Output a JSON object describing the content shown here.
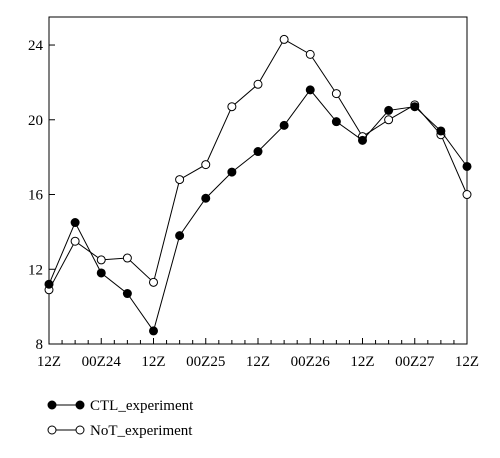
{
  "chart_data": {
    "type": "line",
    "title": "",
    "xlabel": "",
    "ylabel": "",
    "x_tick_labels": [
      "12Z",
      "00Z24",
      "12Z",
      "00Z25",
      "12Z",
      "00Z26",
      "12Z",
      "00Z27",
      "12Z"
    ],
    "x": [
      0,
      3,
      6,
      9,
      12,
      15,
      18,
      21,
      24,
      27,
      30,
      33,
      36,
      39,
      42,
      45,
      48,
      51,
      54,
      57,
      60,
      63,
      66,
      69,
      72,
      75,
      78,
      81,
      84,
      87,
      90,
      93,
      96
    ],
    "ylim": [
      8,
      25.5
    ],
    "y_ticks": [
      8,
      12,
      16,
      20,
      24
    ],
    "grid": false,
    "legend_position": "bottom-left",
    "series": [
      {
        "name": "CTL_experiment",
        "marker": "filled-circle",
        "color": "#000000",
        "points": [
          {
            "x": 0,
            "y": 11.2
          },
          {
            "x": 6,
            "y": 14.5
          },
          {
            "x": 12,
            "y": 11.8
          },
          {
            "x": 18,
            "y": 10.7
          },
          {
            "x": 24,
            "y": 8.7
          },
          {
            "x": 30,
            "y": 13.8
          },
          {
            "x": 36,
            "y": 15.8
          },
          {
            "x": 42,
            "y": 17.2
          },
          {
            "x": 48,
            "y": 18.3
          },
          {
            "x": 54,
            "y": 19.7
          },
          {
            "x": 60,
            "y": 21.6
          },
          {
            "x": 66,
            "y": 19.9
          },
          {
            "x": 72,
            "y": 18.9
          },
          {
            "x": 78,
            "y": 20.5
          },
          {
            "x": 84,
            "y": 20.7
          },
          {
            "x": 90,
            "y": 19.4
          },
          {
            "x": 96,
            "y": 17.5
          }
        ]
      },
      {
        "name": "NoT_experiment",
        "marker": "open-circle",
        "color": "#000000",
        "points": [
          {
            "x": 0,
            "y": 10.9
          },
          {
            "x": 6,
            "y": 13.5
          },
          {
            "x": 12,
            "y": 12.5
          },
          {
            "x": 18,
            "y": 12.6
          },
          {
            "x": 24,
            "y": 11.3
          },
          {
            "x": 30,
            "y": 16.8
          },
          {
            "x": 36,
            "y": 17.6
          },
          {
            "x": 42,
            "y": 20.7
          },
          {
            "x": 48,
            "y": 21.9
          },
          {
            "x": 54,
            "y": 24.3
          },
          {
            "x": 60,
            "y": 23.5
          },
          {
            "x": 66,
            "y": 21.4
          },
          {
            "x": 72,
            "y": 19.1
          },
          {
            "x": 78,
            "y": 20.0
          },
          {
            "x": 84,
            "y": 20.8
          },
          {
            "x": 90,
            "y": 19.2
          },
          {
            "x": 96,
            "y": 16.0
          }
        ]
      }
    ]
  }
}
